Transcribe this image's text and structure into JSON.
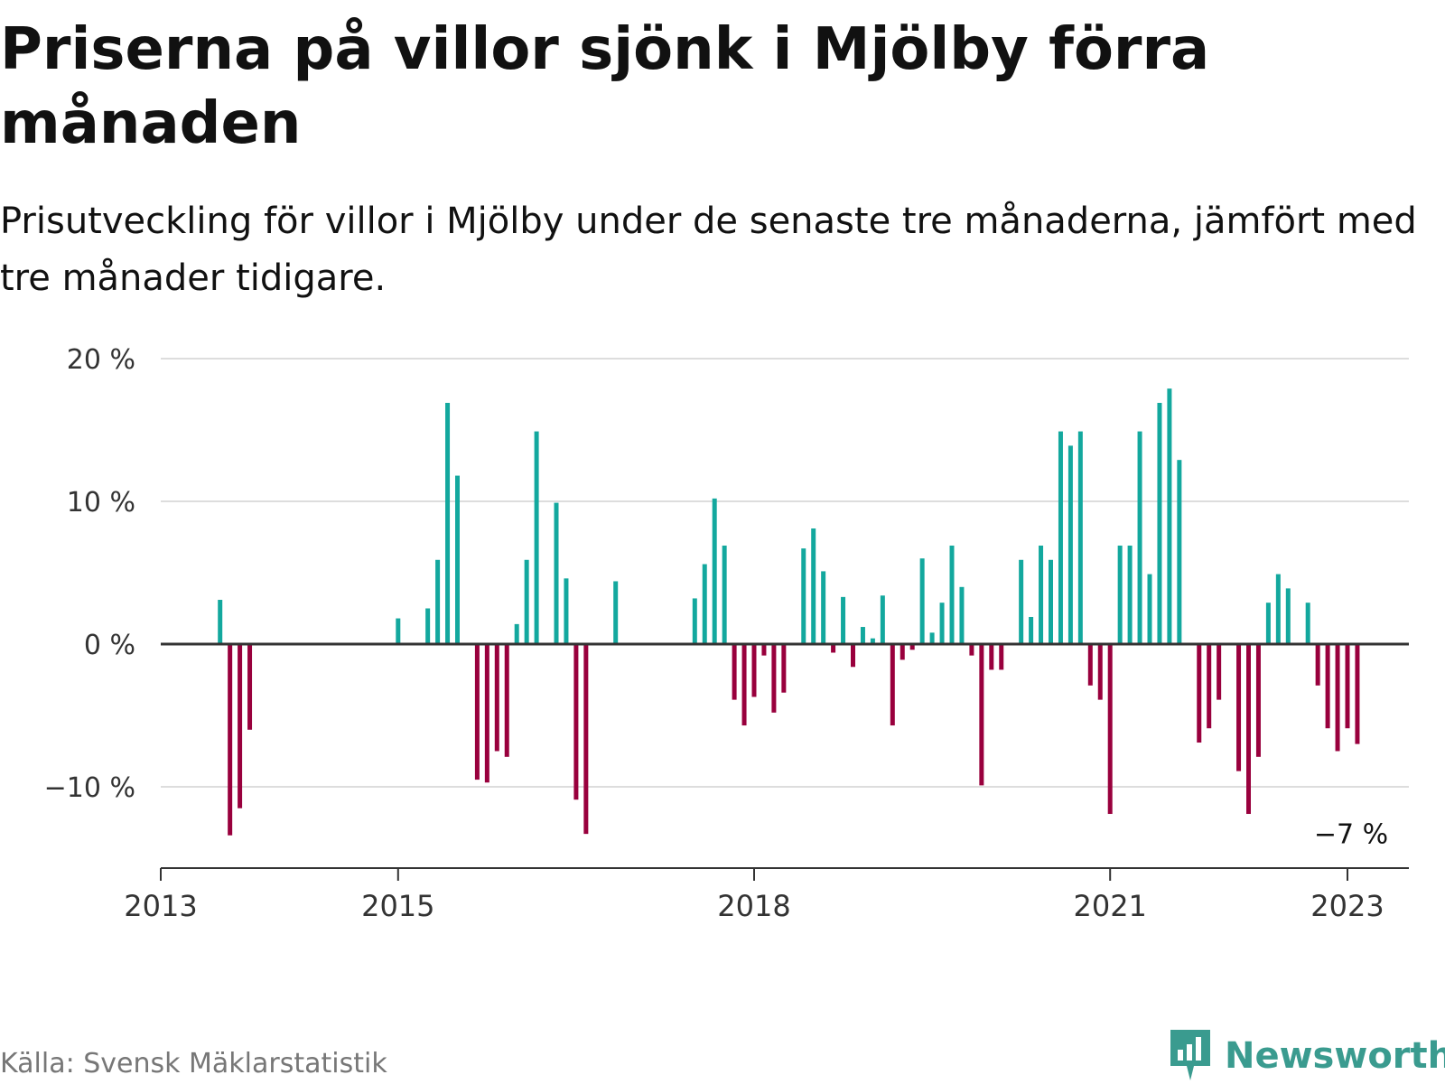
{
  "header": {
    "title": "Priserna på villor sjönk i Mjölby förra månaden",
    "subtitle": "Prisutveckling för villor i Mjölby under de senaste tre månaderna, jämfört med tre månader tidigare."
  },
  "footer": {
    "source": "Källa: Svensk Mäklarstatistik",
    "brand": "Newsworthy",
    "logo_icon": "newsworthy-logo-icon"
  },
  "colors": {
    "positive": "#13a89e",
    "negative": "#99003d",
    "gridline": "#dddddd",
    "zero_line": "#333333",
    "brand": "#3a9b8f"
  },
  "chart_data": {
    "type": "bar",
    "title": "Priserna på villor sjönk i Mjölby förra månaden",
    "subtitle": "Prisutveckling för villor i Mjölby under de senaste tre månaderna, jämfört med tre månader tidigare.",
    "xlabel": "",
    "ylabel": "",
    "unit": "%",
    "ylim": [
      -15.5,
      20
    ],
    "yticks": [
      20,
      10,
      0,
      -10
    ],
    "ytick_labels": [
      "20 %",
      "10 %",
      "0 %",
      "−10 %"
    ],
    "xticks": [
      "2013-01",
      "2015-01",
      "2018-01",
      "2021-01",
      "2023-01"
    ],
    "xtick_labels": [
      "2013",
      "2015",
      "2018",
      "2021",
      "2023"
    ],
    "x_range": [
      "2013-01",
      "2023-06"
    ],
    "grid": true,
    "legend": "none",
    "annotation": {
      "date": "2023-01",
      "value": -7,
      "label": "−7 %"
    },
    "series": [
      {
        "values": [
          {
            "date": "2013-07",
            "value": 3.1
          },
          {
            "date": "2013-08",
            "value": -13.4
          },
          {
            "date": "2013-09",
            "value": -11.5
          },
          {
            "date": "2013-10",
            "value": -6.0
          },
          {
            "date": "2015-01",
            "value": 1.8
          },
          {
            "date": "2015-04",
            "value": 2.5
          },
          {
            "date": "2015-05",
            "value": 5.9
          },
          {
            "date": "2015-06",
            "value": 16.9
          },
          {
            "date": "2015-07",
            "value": 11.8
          },
          {
            "date": "2015-09",
            "value": -9.5
          },
          {
            "date": "2015-10",
            "value": -9.7
          },
          {
            "date": "2015-11",
            "value": -7.5
          },
          {
            "date": "2015-12",
            "value": -7.9
          },
          {
            "date": "2016-01",
            "value": 1.4
          },
          {
            "date": "2016-02",
            "value": 5.9
          },
          {
            "date": "2016-03",
            "value": 14.9
          },
          {
            "date": "2016-05",
            "value": 9.9
          },
          {
            "date": "2016-06",
            "value": 4.6
          },
          {
            "date": "2016-07",
            "value": -10.9
          },
          {
            "date": "2016-08",
            "value": -13.3
          },
          {
            "date": "2016-11",
            "value": 4.4
          },
          {
            "date": "2017-07",
            "value": 3.2
          },
          {
            "date": "2017-08",
            "value": 5.6
          },
          {
            "date": "2017-09",
            "value": 10.2
          },
          {
            "date": "2017-10",
            "value": 6.9
          },
          {
            "date": "2017-11",
            "value": -3.9
          },
          {
            "date": "2017-12",
            "value": -5.7
          },
          {
            "date": "2018-01",
            "value": -3.7
          },
          {
            "date": "2018-02",
            "value": -0.8
          },
          {
            "date": "2018-03",
            "value": -4.8
          },
          {
            "date": "2018-04",
            "value": -3.4
          },
          {
            "date": "2018-06",
            "value": 6.7
          },
          {
            "date": "2018-07",
            "value": 8.1
          },
          {
            "date": "2018-08",
            "value": 5.1
          },
          {
            "date": "2018-09",
            "value": -0.6
          },
          {
            "date": "2018-10",
            "value": 3.3
          },
          {
            "date": "2018-11",
            "value": -1.6
          },
          {
            "date": "2018-12",
            "value": 1.2
          },
          {
            "date": "2019-01",
            "value": 0.4
          },
          {
            "date": "2019-02",
            "value": 3.4
          },
          {
            "date": "2019-03",
            "value": -5.7
          },
          {
            "date": "2019-04",
            "value": -1.1
          },
          {
            "date": "2019-05",
            "value": -0.4
          },
          {
            "date": "2019-06",
            "value": 6.0
          },
          {
            "date": "2019-07",
            "value": 0.8
          },
          {
            "date": "2019-08",
            "value": 2.9
          },
          {
            "date": "2019-09",
            "value": 6.9
          },
          {
            "date": "2019-10",
            "value": 4.0
          },
          {
            "date": "2019-11",
            "value": -0.8
          },
          {
            "date": "2019-12",
            "value": -9.9
          },
          {
            "date": "2020-01",
            "value": -1.8
          },
          {
            "date": "2020-02",
            "value": -1.8
          },
          {
            "date": "2020-04",
            "value": 5.9
          },
          {
            "date": "2020-05",
            "value": 1.9
          },
          {
            "date": "2020-06",
            "value": 6.9
          },
          {
            "date": "2020-07",
            "value": 5.9
          },
          {
            "date": "2020-08",
            "value": 14.9
          },
          {
            "date": "2020-09",
            "value": 13.9
          },
          {
            "date": "2020-10",
            "value": 14.9
          },
          {
            "date": "2020-11",
            "value": -2.9
          },
          {
            "date": "2020-12",
            "value": -3.9
          },
          {
            "date": "2021-01",
            "value": -11.9
          },
          {
            "date": "2021-02",
            "value": 6.9
          },
          {
            "date": "2021-03",
            "value": 6.9
          },
          {
            "date": "2021-04",
            "value": 14.9
          },
          {
            "date": "2021-05",
            "value": 4.9
          },
          {
            "date": "2021-06",
            "value": 16.9
          },
          {
            "date": "2021-07",
            "value": 17.9
          },
          {
            "date": "2021-08",
            "value": 12.9
          },
          {
            "date": "2021-10",
            "value": -6.9
          },
          {
            "date": "2021-11",
            "value": -5.9
          },
          {
            "date": "2021-12",
            "value": -3.9
          },
          {
            "date": "2022-02",
            "value": -8.9
          },
          {
            "date": "2022-03",
            "value": -11.9
          },
          {
            "date": "2022-04",
            "value": -7.9
          },
          {
            "date": "2022-05",
            "value": 2.9
          },
          {
            "date": "2022-06",
            "value": 4.9
          },
          {
            "date": "2022-07",
            "value": 3.9
          },
          {
            "date": "2022-09",
            "value": 2.9
          },
          {
            "date": "2022-10",
            "value": -2.9
          },
          {
            "date": "2022-11",
            "value": -5.9
          },
          {
            "date": "2022-12",
            "value": -7.5
          },
          {
            "date": "2023-01",
            "value": -5.9
          },
          {
            "date": "2023-02",
            "value": -7.0
          }
        ]
      }
    ]
  }
}
